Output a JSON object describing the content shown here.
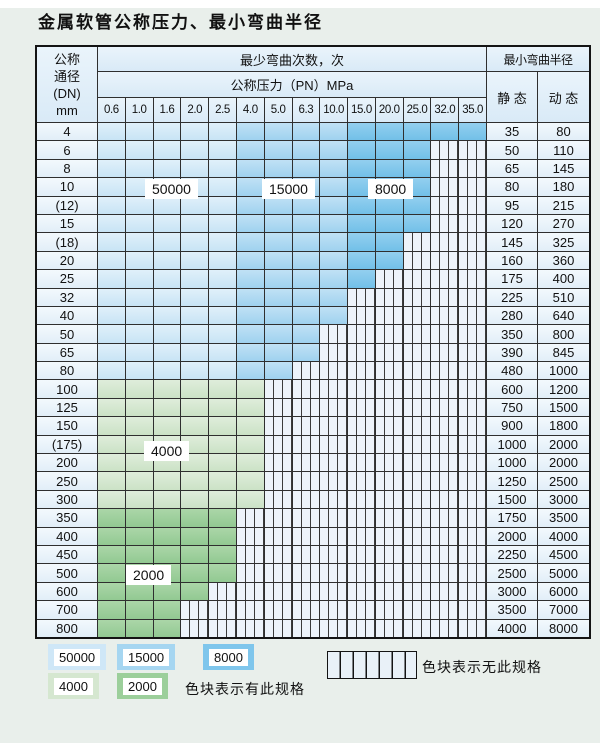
{
  "page_title": "金属软管公称压力、最小弯曲半径",
  "table": {
    "header": {
      "dn_lines": [
        "公称",
        "通径",
        "(DN)",
        "mm"
      ],
      "cycles_title": "最少弯曲次数，次",
      "pressure_title": "公称压力（PN）MPa",
      "radius_title": "最小弯曲半径",
      "static_label": "静 态",
      "dynamic_label": "动 态",
      "pressures": [
        "0.6",
        "1.0",
        "1.6",
        "2.0",
        "2.5",
        "4.0",
        "5.0",
        "6.3",
        "10.0",
        "15.0",
        "20.0",
        "25.0",
        "32.0",
        "35.0"
      ]
    },
    "cycle_zones": {
      "50000": {
        "type": "blue-light",
        "columns": [
          "0.6",
          "1.0",
          "1.6",
          "2.0",
          "2.5"
        ]
      },
      "15000": {
        "type": "blue-medium",
        "columns": [
          "4.0",
          "5.0",
          "6.3",
          "10.0"
        ]
      },
      "8000": {
        "type": "blue-dark",
        "columns": [
          "15.0",
          "20.0",
          "25.0",
          "32.0",
          "35.0"
        ]
      },
      "4000": {
        "type": "green-light",
        "rows": [
          "100",
          "125",
          "150",
          "(175)",
          "200",
          "250",
          "300"
        ]
      },
      "2000": {
        "type": "green-medium",
        "rows": [
          "350",
          "400",
          "450",
          "500",
          "600",
          "700",
          "800"
        ]
      }
    },
    "rows": [
      {
        "dn": "4",
        "colored_columns": 14,
        "static": "35",
        "dynamic": "80"
      },
      {
        "dn": "6",
        "colored_columns": 12,
        "static": "50",
        "dynamic": "110"
      },
      {
        "dn": "8",
        "colored_columns": 12,
        "static": "65",
        "dynamic": "145"
      },
      {
        "dn": "10",
        "colored_columns": 12,
        "static": "80",
        "dynamic": "180"
      },
      {
        "dn": "(12)",
        "colored_columns": 12,
        "static": "95",
        "dynamic": "215"
      },
      {
        "dn": "15",
        "colored_columns": 12,
        "static": "120",
        "dynamic": "270"
      },
      {
        "dn": "(18)",
        "colored_columns": 11,
        "static": "145",
        "dynamic": "325"
      },
      {
        "dn": "20",
        "colored_columns": 11,
        "static": "160",
        "dynamic": "360"
      },
      {
        "dn": "25",
        "colored_columns": 10,
        "static": "175",
        "dynamic": "400"
      },
      {
        "dn": "32",
        "colored_columns": 9,
        "static": "225",
        "dynamic": "510"
      },
      {
        "dn": "40",
        "colored_columns": 9,
        "static": "280",
        "dynamic": "640"
      },
      {
        "dn": "50",
        "colored_columns": 8,
        "static": "350",
        "dynamic": "800"
      },
      {
        "dn": "65",
        "colored_columns": 8,
        "static": "390",
        "dynamic": "845"
      },
      {
        "dn": "80",
        "colored_columns": 7,
        "static": "480",
        "dynamic": "1000"
      },
      {
        "dn": "100",
        "colored_columns": 6,
        "static": "600",
        "dynamic": "1200"
      },
      {
        "dn": "125",
        "colored_columns": 6,
        "static": "750",
        "dynamic": "1500"
      },
      {
        "dn": "150",
        "colored_columns": 6,
        "static": "900",
        "dynamic": "1800"
      },
      {
        "dn": "(175)",
        "colored_columns": 6,
        "static": "1000",
        "dynamic": "2000"
      },
      {
        "dn": "200",
        "colored_columns": 6,
        "static": "1000",
        "dynamic": "2000"
      },
      {
        "dn": "250",
        "colored_columns": 6,
        "static": "1250",
        "dynamic": "2500"
      },
      {
        "dn": "300",
        "colored_columns": 6,
        "static": "1500",
        "dynamic": "3000"
      },
      {
        "dn": "350",
        "colored_columns": 5,
        "static": "1750",
        "dynamic": "3500"
      },
      {
        "dn": "400",
        "colored_columns": 5,
        "static": "2000",
        "dynamic": "4000"
      },
      {
        "dn": "450",
        "colored_columns": 5,
        "static": "2250",
        "dynamic": "4500"
      },
      {
        "dn": "500",
        "colored_columns": 5,
        "static": "2500",
        "dynamic": "5000"
      },
      {
        "dn": "600",
        "colored_columns": 4,
        "static": "3000",
        "dynamic": "6000"
      },
      {
        "dn": "700",
        "colored_columns": 3,
        "static": "3500",
        "dynamic": "7000"
      },
      {
        "dn": "800",
        "colored_columns": 3,
        "static": "4000",
        "dynamic": "8000"
      }
    ]
  },
  "overlay_labels": [
    {
      "text": "50000"
    },
    {
      "text": "15000"
    },
    {
      "text": "8000"
    },
    {
      "text": "4000"
    },
    {
      "text": "2000"
    }
  ],
  "legend": {
    "items": [
      {
        "value": "50000"
      },
      {
        "value": "15000"
      },
      {
        "value": "8000"
      },
      {
        "value": "4000"
      },
      {
        "value": "2000"
      }
    ],
    "available_note": "色块表示有此规格",
    "unavailable_note": "色块表示无此规格"
  },
  "colors": {
    "cycles_50000": "#cfe7f7",
    "cycles_15000": "#a6d6f1",
    "cycles_8000": "#7fc6ec",
    "cycles_4000": "#d5e7d0",
    "cycles_2000": "#9ccf9b",
    "no_spec_bg": "#edf3fa",
    "grid_line": "#2f2f2f",
    "header_bg": "#ddecf8"
  }
}
